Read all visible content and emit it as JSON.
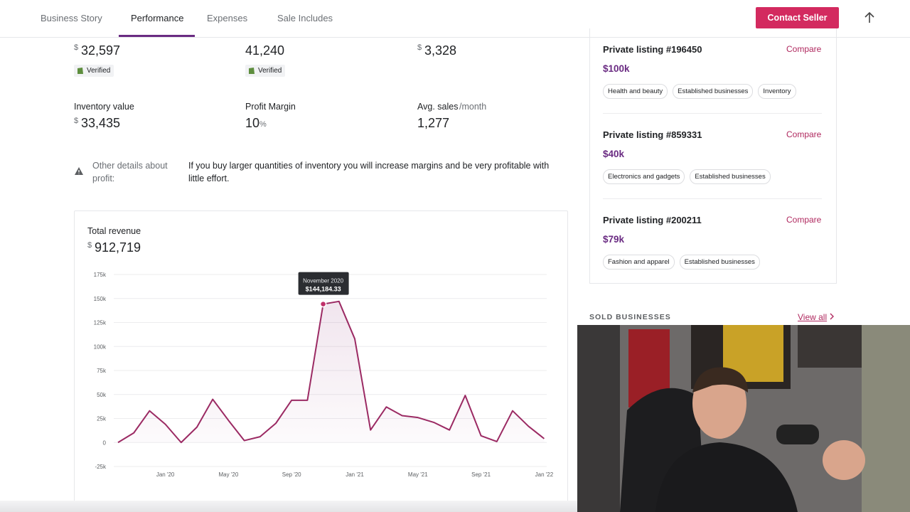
{
  "nav": {
    "tabs": [
      "Business Story",
      "Performance",
      "Expenses",
      "Sale Includes"
    ],
    "button": "Contact Seller"
  },
  "metrics": {
    "top": [
      {
        "prefix": "$",
        "value": "32,597",
        "badge": "Verified"
      },
      {
        "value": "41,240",
        "badge": "Verified"
      },
      {
        "prefix": "$",
        "value": "3,328"
      }
    ],
    "bottom": [
      {
        "label": "Inventory value",
        "prefix": "$",
        "value": "33,435"
      },
      {
        "label": "Profit Margin",
        "value": "10",
        "suffix": "%"
      },
      {
        "label": "Avg. sales",
        "label_suffix": "/month",
        "value": "1,277"
      }
    ]
  },
  "details": {
    "label": "Other details about profit:",
    "text": "If you buy larger quantities of inventory you will increase margins and be very profitable with little effort."
  },
  "chart_data": {
    "type": "line",
    "title": "Total revenue",
    "total_prefix": "$",
    "total": "912,719",
    "categories": [
      null,
      null,
      null,
      "Jan '20",
      null,
      null,
      null,
      "May '20",
      null,
      null,
      null,
      "Sep '20",
      null,
      null,
      null,
      "Jan '21",
      null,
      null,
      null,
      "May '21",
      null,
      null,
      null,
      "Sep '21",
      null,
      null,
      null,
      "Jan '22"
    ],
    "series": [
      {
        "name": "Revenue",
        "color": "#9b2a63",
        "values": [
          0,
          10000,
          33000,
          19000,
          0,
          16000,
          45000,
          23000,
          2000,
          6000,
          20000,
          44000,
          44000,
          144184.33,
          147000,
          108000,
          13000,
          37000,
          28000,
          26000,
          21000,
          13000,
          49000,
          7000,
          1000,
          33000,
          17000,
          4000
        ]
      }
    ],
    "ylim": [
      -25000,
      175000
    ],
    "yticks": [
      {
        "value": -25000,
        "label": "-25k"
      },
      0,
      {
        "value": 25000,
        "label": "25k"
      },
      {
        "value": 50000,
        "label": "50k"
      },
      {
        "value": 75000,
        "label": "75k"
      },
      {
        "value": 100000,
        "label": "100k"
      },
      {
        "value": 125000,
        "label": "125k"
      },
      {
        "value": 150000,
        "label": "150k"
      },
      {
        "value": 175000,
        "label": "175k"
      }
    ],
    "grid": true,
    "tooltip": {
      "title": "November 2020",
      "text": "$144,184.33"
    }
  },
  "listings": [
    {
      "title": "Private listing #196450",
      "price": "$100k",
      "action": "Compare",
      "tags": [
        "Health and beauty",
        "Established businesses",
        "Inventory"
      ]
    },
    {
      "title": "Private listing #859331",
      "price": "$40k",
      "action": "Compare",
      "tags": [
        "Electronics and gadgets",
        "Established businesses"
      ]
    },
    {
      "title": "Private listing #200211",
      "price": "$79k",
      "action": "Compare",
      "tags": [
        "Fashion and apparel",
        "Established businesses"
      ]
    }
  ],
  "sold": {
    "heading": "SOLD BUSINESSES",
    "link": "View all"
  }
}
